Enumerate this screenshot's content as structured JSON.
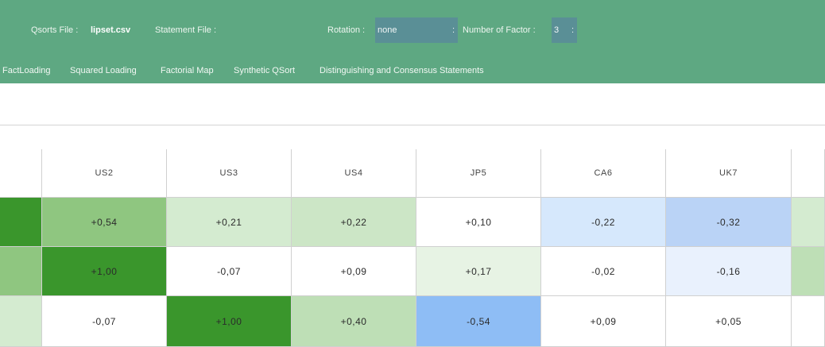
{
  "toolbar": {
    "qsorts_label": "Qsorts File :",
    "qsorts_file": "lipset.csv",
    "statement_label": "Statement File :",
    "rotation_label": "Rotation :",
    "rotation_value": "none",
    "factor_label": "Number of Factor :",
    "factor_value": "3",
    "separator": ":"
  },
  "tabs": [
    "FactLoading",
    "Squared Loading",
    "Factorial Map",
    "Synthetic QSort",
    "Distinguishing and Consensus Statements"
  ],
  "table": {
    "columns": [
      "US2",
      "US3",
      "US4",
      "JP5",
      "CA6",
      "UK7"
    ],
    "rows": [
      [
        "+0,54",
        "+0,21",
        "+0,22",
        "+0,10",
        "-0,22",
        "-0,32"
      ],
      [
        "+1,00",
        "-0,07",
        "+0,09",
        "+0,17",
        "-0,02",
        "-0,16"
      ],
      [
        "-0,07",
        "+1,00",
        "+0,40",
        "-0,54",
        "+0,09",
        "+0,05"
      ]
    ],
    "row_colors": [
      [
        "#8fc680",
        "#d4ebd0",
        "#cce6c6",
        "#ffffff",
        "#d6e8fc",
        "#bad3f6"
      ],
      [
        "#3a962c",
        "#ffffff",
        "#ffffff",
        "#e7f3e4",
        "#ffffff",
        "#e9f1fd"
      ],
      [
        "#ffffff",
        "#3a962c",
        "#bedfb6",
        "#8ebdf5",
        "#ffffff",
        "#ffffff"
      ]
    ],
    "left_colors": [
      "#3a962c",
      "#8fc680",
      "#d4ebd0"
    ],
    "right_colors": [
      "#d4ebd0",
      "#bedfb6",
      "#ffffff"
    ]
  },
  "colors": {
    "header_bg": "#5ea882",
    "select_bg": "#5a8f96"
  }
}
